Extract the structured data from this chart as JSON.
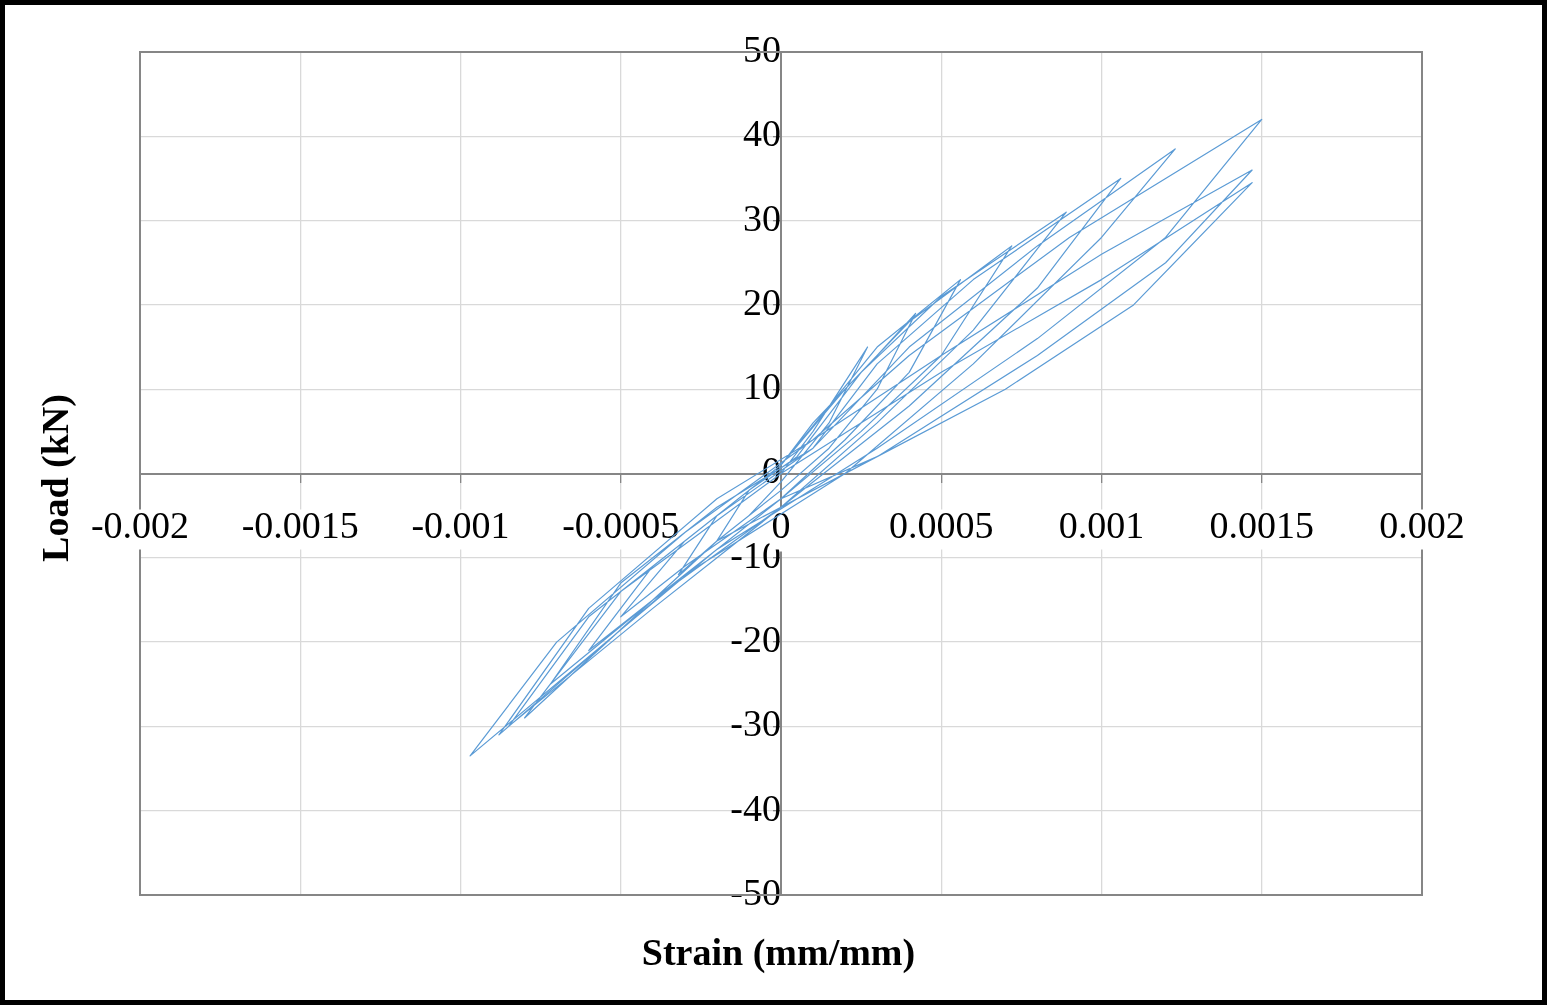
{
  "chart_data": {
    "type": "line",
    "xlabel": "Strain (mm/mm)",
    "ylabel": "Load (kN)",
    "xlim": [
      -0.002,
      0.002
    ],
    "xticks": [
      -0.002,
      -0.0015,
      -0.001,
      -0.0005,
      0,
      0.0005,
      0.001,
      0.0015,
      0.002
    ],
    "ylim": [
      -50,
      50
    ],
    "yticks": [
      -50,
      -40,
      -30,
      -20,
      -10,
      0,
      10,
      20,
      30,
      40,
      50
    ],
    "grid": true,
    "legend": false,
    "marker": "none",
    "line_style": "solid",
    "series": [
      {
        "color": "#5b9bd5",
        "x": [
          0,
          0.0001,
          0.00027,
          0.00015,
          0,
          -0.0001,
          -0.0002,
          -0.0001,
          0,
          0.0001,
          0.0003,
          0.00042,
          0.0003,
          0.00015,
          0,
          -0.0002,
          -0.00032,
          -0.0002,
          0,
          0.00015,
          0.0003,
          0.00056,
          0.0004,
          0.0002,
          0,
          -0.0003,
          -0.0005,
          -0.0003,
          -0.0001,
          0,
          0.0002,
          0.0004,
          0.00072,
          0.0005,
          0.00025,
          0,
          -0.0003,
          -0.0006,
          -0.0004,
          -0.0001,
          5e-05,
          0.00025,
          0.0005,
          0.00089,
          0.0006,
          0.0003,
          0,
          -0.0004,
          -0.00072,
          -0.0005,
          -0.0002,
          0.0001,
          0.0003,
          0.0006,
          0.00106,
          0.0008,
          0.0004,
          0,
          -0.0004,
          -0.00085,
          -0.0006,
          -0.0002,
          0.0001,
          0.0004,
          0.0008,
          0.00123,
          0.001,
          0.0006,
          0.0002,
          -0.0003,
          -0.00088,
          -0.0006,
          -0.0002,
          0.0001,
          0.0004,
          0.0009,
          0.0015,
          0.0012,
          0.0008,
          0.0003,
          -0.0002,
          -0.00097,
          -0.0007,
          -0.0003,
          0.0001,
          0.0005,
          0.001,
          0.00147,
          0.0012,
          0.0008,
          0.0003,
          -0.0002,
          -0.0008,
          -0.0005,
          0,
          0.0005,
          0.001,
          0.00147,
          0.0011,
          0.0007,
          0.0003,
          0
        ],
        "values": [
          0,
          5,
          15,
          6,
          -1,
          -5,
          -8,
          -2,
          1,
          6,
          14,
          19,
          10,
          3,
          -2,
          -8,
          -12,
          -5,
          1,
          8,
          15,
          23,
          12,
          4,
          -3,
          -11,
          -17,
          -8,
          -2,
          1,
          10,
          18,
          27,
          14,
          5,
          -3,
          -12,
          -21,
          -11,
          -2,
          2,
          12,
          21,
          31,
          17,
          6,
          -4,
          -15,
          -25,
          -13,
          -4,
          3,
          13,
          23,
          35,
          22,
          8,
          -4,
          -16,
          -30,
          -17,
          -5,
          3,
          15,
          27,
          38.5,
          28,
          13,
          0,
          -12,
          -31,
          -16,
          -3,
          4,
          14,
          28,
          42,
          28,
          16,
          3,
          -9,
          -33.5,
          -20,
          -7,
          4,
          14,
          26,
          36,
          25,
          14,
          2,
          -8,
          -29,
          -14,
          0,
          12,
          23,
          34.5,
          20,
          10,
          2,
          -3
        ]
      }
    ]
  }
}
